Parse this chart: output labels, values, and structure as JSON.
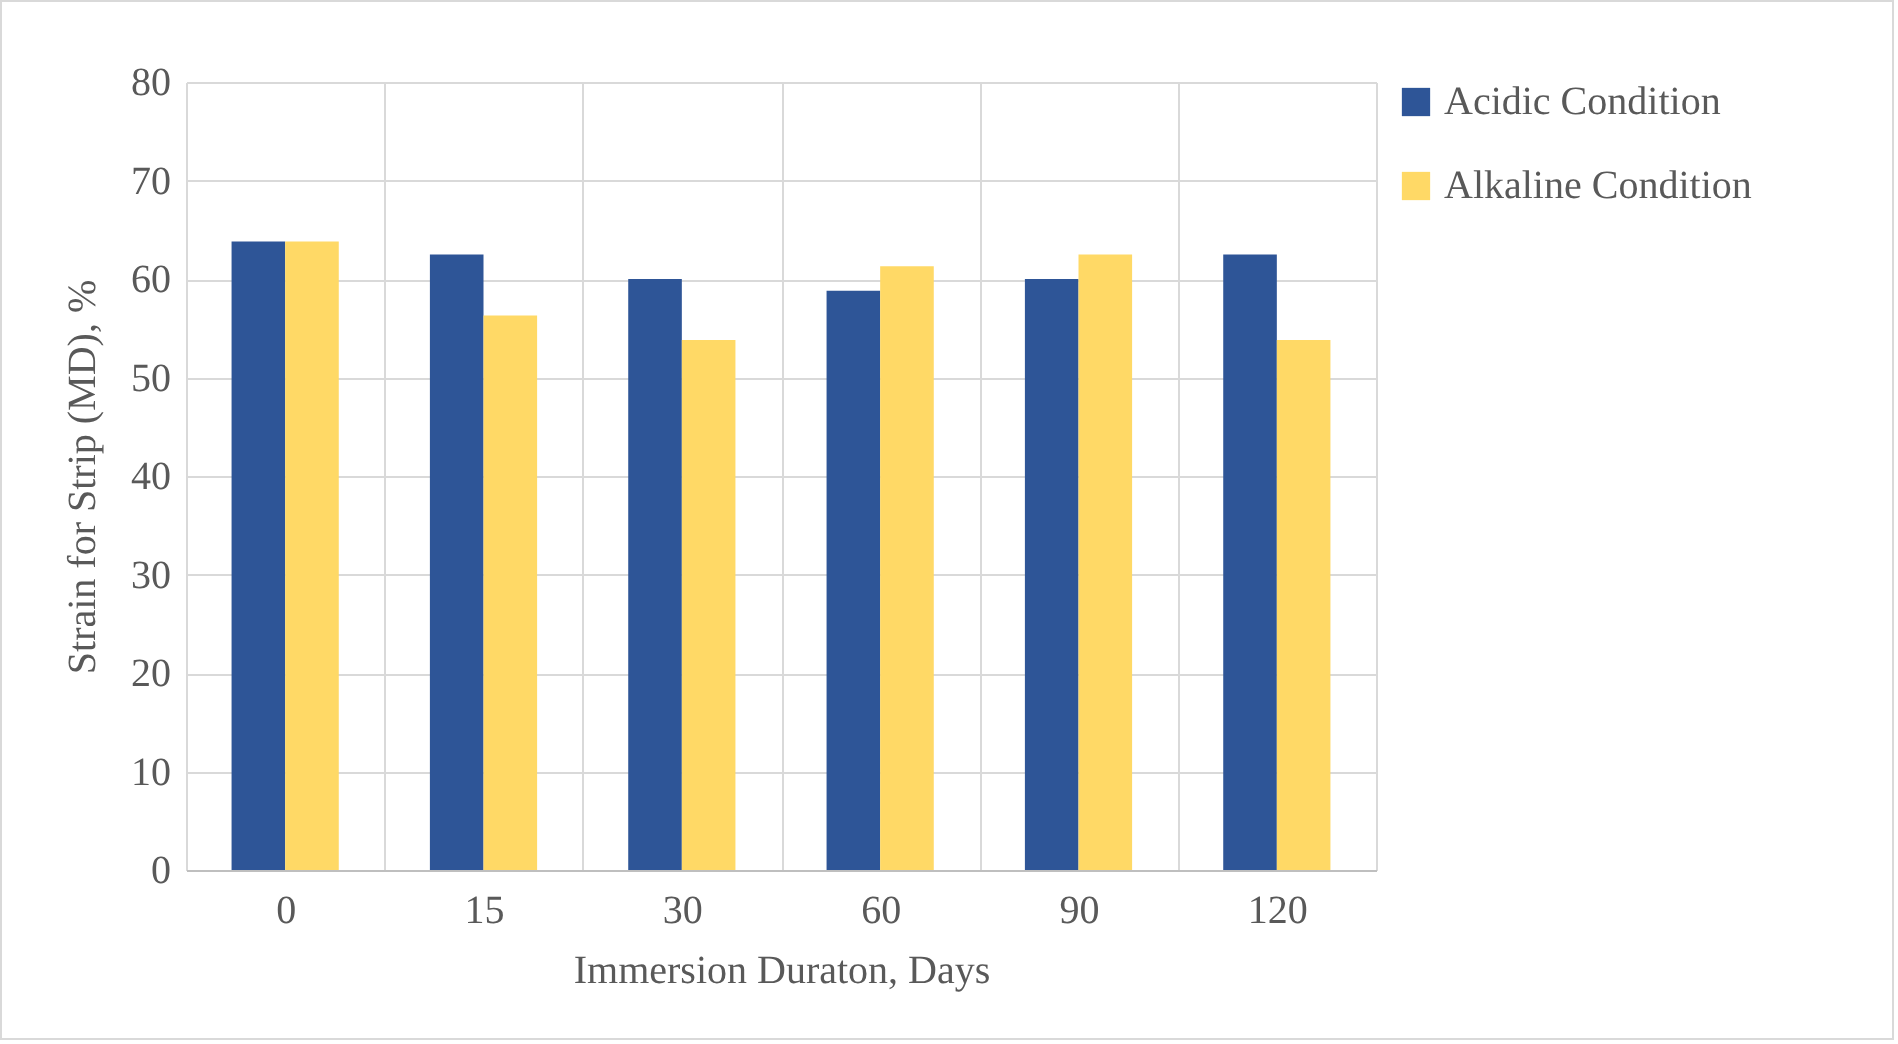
{
  "chart_data": {
    "type": "bar",
    "xlabel": "Immersion Duraton, Days",
    "ylabel": "Strain for Strip (MD), %",
    "categories": [
      "0",
      "15",
      "30",
      "60",
      "90",
      "120"
    ],
    "series": [
      {
        "name": "Acidic Condition",
        "color": "#2e5597",
        "values": [
          63.8,
          62.5,
          60,
          58.8,
          60,
          62.5
        ]
      },
      {
        "name": "Alkaline Condition",
        "color": "#ffd966",
        "values": [
          63.8,
          56.3,
          53.8,
          61.3,
          62.5,
          53.8
        ]
      }
    ],
    "ylim": [
      0,
      80
    ],
    "yticks": [
      0,
      10,
      20,
      30,
      40,
      50,
      60,
      70,
      80
    ],
    "grid": true,
    "legend": "right"
  }
}
